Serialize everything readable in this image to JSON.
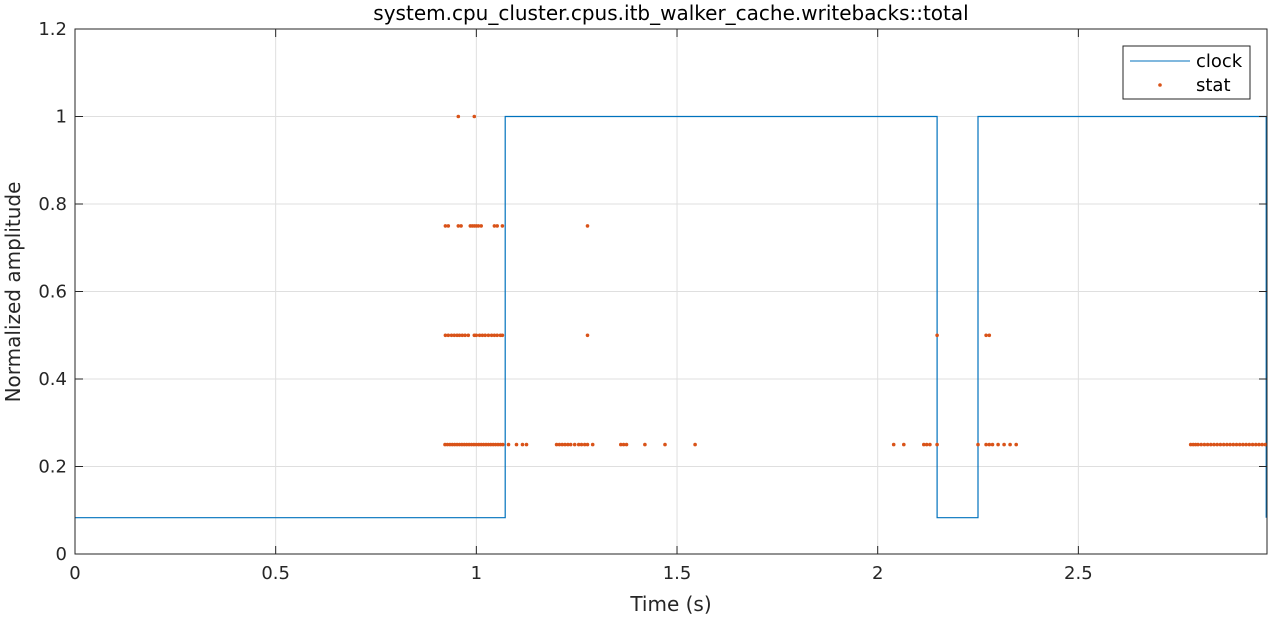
{
  "chart_data": {
    "type": "line",
    "title": "system.cpu_cluster.cpus.itb_walker_cache.writebacks::total",
    "xlabel": "Time (s)",
    "ylabel": "Normalized amplitude",
    "xlim": [
      0,
      2.97
    ],
    "ylim": [
      0,
      1.2
    ],
    "xticks": [
      0,
      0.5,
      1,
      1.5,
      2,
      2.5
    ],
    "xtick_labels": [
      "0",
      "0.5",
      "1",
      "1.5",
      "2",
      "2.5"
    ],
    "yticks": [
      0,
      0.2,
      0.4,
      0.6,
      0.8,
      1,
      1.2
    ],
    "ytick_labels": [
      "0",
      "0.2",
      "0.4",
      "0.6",
      "0.8",
      "1",
      "1.2"
    ],
    "grid": true,
    "legend": {
      "position": "top-right",
      "entries": [
        "clock",
        "stat"
      ]
    },
    "colors": {
      "clock": "#0072BD",
      "stat": "#D95319"
    },
    "series": [
      {
        "name": "clock",
        "style": "step-line",
        "x": [
          0,
          1.072,
          1.072,
          2.148,
          2.148,
          2.25,
          2.25,
          2.968,
          2.968
        ],
        "y": [
          0.083,
          0.083,
          1,
          1,
          0.083,
          0.083,
          1,
          1,
          0.083
        ]
      },
      {
        "name": "stat",
        "style": "markers",
        "points": [
          [
            0.955,
            1
          ],
          [
            0.995,
            1
          ],
          [
            0.923,
            0.75
          ],
          [
            0.93,
            0.75
          ],
          [
            0.955,
            0.75
          ],
          [
            0.962,
            0.75
          ],
          [
            0.985,
            0.75
          ],
          [
            0.99,
            0.75
          ],
          [
            0.995,
            0.75
          ],
          [
            1.0,
            0.75
          ],
          [
            1.005,
            0.75
          ],
          [
            1.012,
            0.75
          ],
          [
            1.045,
            0.75
          ],
          [
            1.052,
            0.75
          ],
          [
            1.065,
            0.75
          ],
          [
            1.277,
            0.75
          ],
          [
            0.923,
            0.5
          ],
          [
            0.93,
            0.5
          ],
          [
            0.938,
            0.5
          ],
          [
            0.945,
            0.5
          ],
          [
            0.952,
            0.5
          ],
          [
            0.958,
            0.5
          ],
          [
            0.965,
            0.5
          ],
          [
            0.972,
            0.5
          ],
          [
            0.98,
            0.5
          ],
          [
            0.995,
            0.5
          ],
          [
            1.0,
            0.5
          ],
          [
            1.008,
            0.5
          ],
          [
            1.015,
            0.5
          ],
          [
            1.022,
            0.5
          ],
          [
            1.03,
            0.5
          ],
          [
            1.038,
            0.5
          ],
          [
            1.045,
            0.5
          ],
          [
            1.052,
            0.5
          ],
          [
            1.06,
            0.5
          ],
          [
            1.065,
            0.5
          ],
          [
            1.277,
            0.5
          ],
          [
            2.148,
            0.5
          ],
          [
            2.27,
            0.5
          ],
          [
            2.278,
            0.5
          ],
          [
            0.922,
            0.25
          ],
          [
            0.928,
            0.25
          ],
          [
            0.934,
            0.25
          ],
          [
            0.94,
            0.25
          ],
          [
            0.946,
            0.25
          ],
          [
            0.952,
            0.25
          ],
          [
            0.958,
            0.25
          ],
          [
            0.964,
            0.25
          ],
          [
            0.97,
            0.25
          ],
          [
            0.976,
            0.25
          ],
          [
            0.982,
            0.25
          ],
          [
            0.988,
            0.25
          ],
          [
            0.994,
            0.25
          ],
          [
            1.0,
            0.25
          ],
          [
            1.006,
            0.25
          ],
          [
            1.012,
            0.25
          ],
          [
            1.018,
            0.25
          ],
          [
            1.024,
            0.25
          ],
          [
            1.03,
            0.25
          ],
          [
            1.036,
            0.25
          ],
          [
            1.042,
            0.25
          ],
          [
            1.048,
            0.25
          ],
          [
            1.054,
            0.25
          ],
          [
            1.06,
            0.25
          ],
          [
            1.066,
            0.25
          ],
          [
            1.08,
            0.25
          ],
          [
            1.1,
            0.25
          ],
          [
            1.115,
            0.25
          ],
          [
            1.125,
            0.25
          ],
          [
            1.2,
            0.25
          ],
          [
            1.207,
            0.25
          ],
          [
            1.214,
            0.25
          ],
          [
            1.221,
            0.25
          ],
          [
            1.228,
            0.25
          ],
          [
            1.235,
            0.25
          ],
          [
            1.245,
            0.25
          ],
          [
            1.255,
            0.25
          ],
          [
            1.262,
            0.25
          ],
          [
            1.27,
            0.25
          ],
          [
            1.277,
            0.25
          ],
          [
            1.29,
            0.25
          ],
          [
            1.36,
            0.25
          ],
          [
            1.367,
            0.25
          ],
          [
            1.374,
            0.25
          ],
          [
            1.42,
            0.25
          ],
          [
            1.47,
            0.25
          ],
          [
            1.545,
            0.25
          ],
          [
            2.04,
            0.25
          ],
          [
            2.065,
            0.25
          ],
          [
            2.115,
            0.25
          ],
          [
            2.122,
            0.25
          ],
          [
            2.13,
            0.25
          ],
          [
            2.148,
            0.25
          ],
          [
            2.25,
            0.25
          ],
          [
            2.27,
            0.25
          ],
          [
            2.278,
            0.25
          ],
          [
            2.286,
            0.25
          ],
          [
            2.3,
            0.25
          ],
          [
            2.315,
            0.25
          ],
          [
            2.33,
            0.25
          ],
          [
            2.345,
            0.25
          ],
          [
            2.78,
            0.25
          ],
          [
            2.786,
            0.25
          ],
          [
            2.792,
            0.25
          ],
          [
            2.798,
            0.25
          ],
          [
            2.806,
            0.25
          ],
          [
            2.814,
            0.25
          ],
          [
            2.822,
            0.25
          ],
          [
            2.83,
            0.25
          ],
          [
            2.838,
            0.25
          ],
          [
            2.846,
            0.25
          ],
          [
            2.854,
            0.25
          ],
          [
            2.862,
            0.25
          ],
          [
            2.87,
            0.25
          ],
          [
            2.878,
            0.25
          ],
          [
            2.886,
            0.25
          ],
          [
            2.894,
            0.25
          ],
          [
            2.902,
            0.25
          ],
          [
            2.91,
            0.25
          ],
          [
            2.918,
            0.25
          ],
          [
            2.926,
            0.25
          ],
          [
            2.934,
            0.25
          ],
          [
            2.942,
            0.25
          ],
          [
            2.95,
            0.25
          ],
          [
            2.958,
            0.25
          ],
          [
            2.966,
            0.25
          ]
        ]
      }
    ]
  }
}
